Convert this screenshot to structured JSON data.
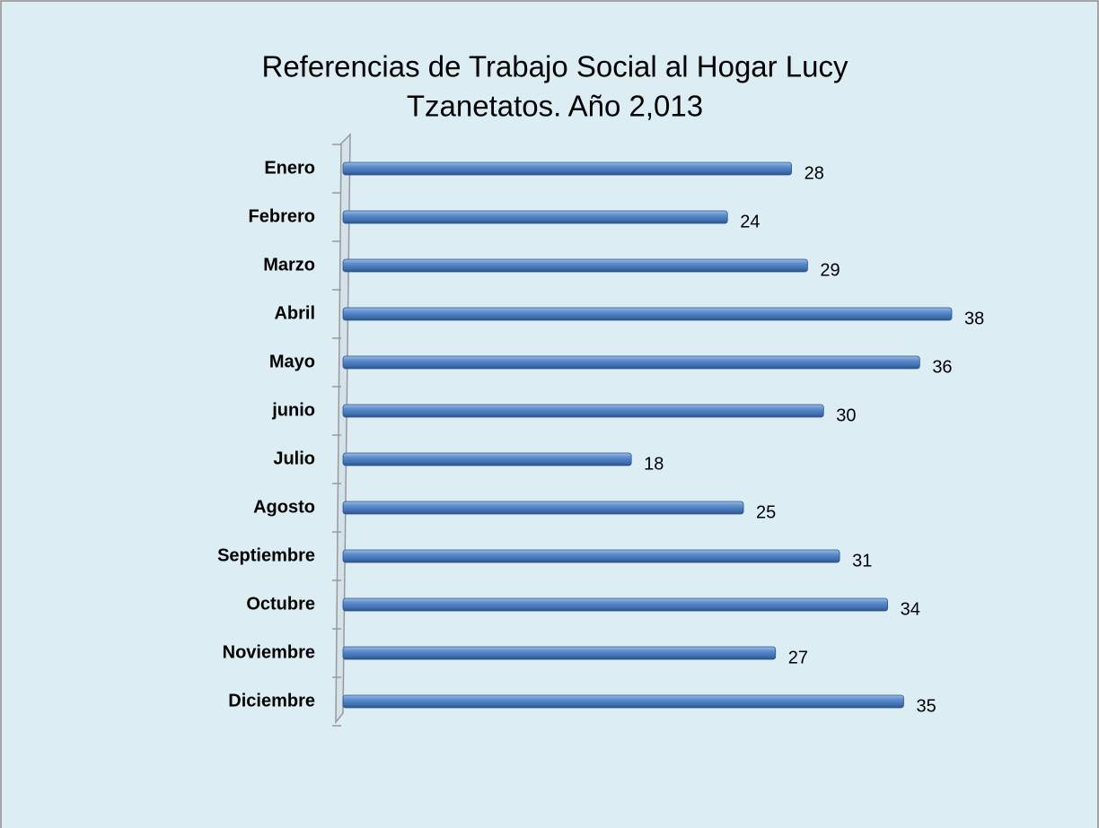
{
  "chart_data": {
    "type": "bar",
    "orientation": "horizontal",
    "title": [
      "Referencias de Trabajo Social al Hogar Lucy",
      "Tzanetatos.    Año 2,013"
    ],
    "categories": [
      "Enero",
      "Febrero",
      "Marzo",
      "Abril",
      "Mayo",
      "junio",
      "Julio",
      "Agosto",
      "Septiembre",
      "Octubre",
      "Noviembre",
      "Diciembre"
    ],
    "values": [
      28,
      24,
      29,
      38,
      36,
      30,
      18,
      25,
      31,
      34,
      27,
      35
    ],
    "color": "#4f81bd",
    "data_labels": true,
    "grid": false
  }
}
